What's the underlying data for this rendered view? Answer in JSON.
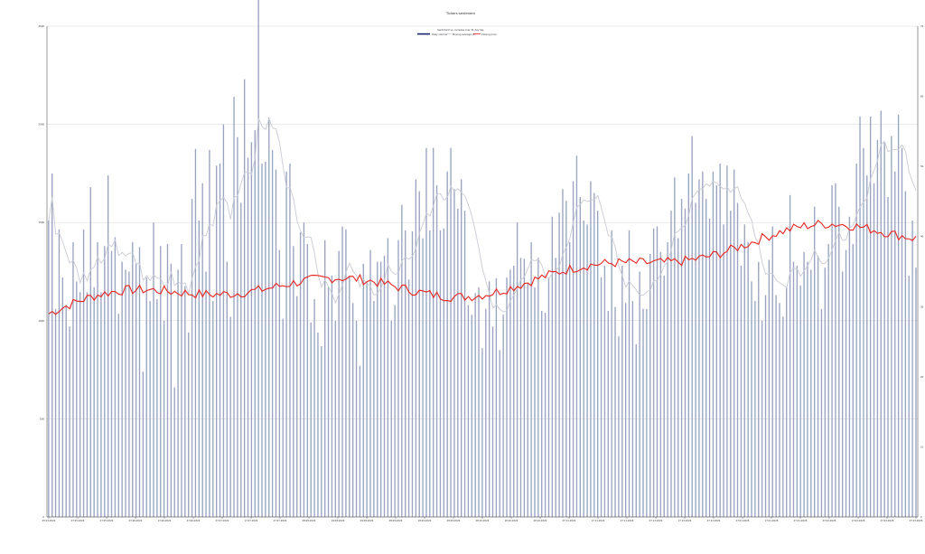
{
  "chart_data": {
    "type": "bar+line",
    "title": "Tickers ",
    "title_suffix": "sentiment",
    "legend_title": "Sentiment vs. increase over 31-day ",
    "legend_title_suffix": "SLL",
    "legend": {
      "volume_label": "Daily volume",
      "ma_label": "Moving Average ",
      "ma_suffix": "(8)",
      "price_label": "Closing ",
      "price_suffix": "price"
    },
    "y_left": {
      "min": 0,
      "max": 2500,
      "ticks": [
        "0",
        "500",
        "1000",
        "1500",
        "2000",
        "2500"
      ]
    },
    "y_right": {
      "min": 0,
      "max": 70,
      "ticks": [
        "0",
        "10",
        "20",
        "30",
        "40",
        "50",
        "60",
        "70"
      ]
    },
    "grid": true,
    "legend_position": "top-center",
    "colors": {
      "bars": "#9aa4bf",
      "ma": "#c8cad6",
      "price": "#e8231d",
      "grid": "#d4d4d4",
      "axis": "#333333"
    },
    "x_tick_labels": [
      "25.04.2024",
      "07.05.2024",
      "27.05.2024",
      "07.06.2024",
      "17.06.2024",
      "27.06.2024",
      "07.07.2024",
      "17.07.2024",
      "27.07.2024",
      "08.08.2024",
      "19.08.2024",
      "29.08.2024",
      "08.09.2024",
      "18.09.2024",
      "28.09.2024",
      "08.10.2024",
      "18.10.2024",
      "28.10.2024",
      "07.11.2024",
      "17.11.2024",
      "27.11.2024",
      "07.12.2024",
      "17.12.2024",
      "27.12.2024",
      "07.01.2025",
      "17.01.2025",
      "27.01.2025",
      "07.02.2025",
      "17.02.2025",
      "27.02.2025",
      "07.03.2025"
    ],
    "volume": [
      1510,
      1750,
      1060,
      1465,
      1220,
      1080,
      970,
      1400,
      1200,
      1145,
      1465,
      1145,
      1680,
      1170,
      1400,
      1145,
      1380,
      1740,
      1355,
      1425,
      1035,
      1300,
      1260,
      1250,
      1400,
      1290,
      1375,
      740,
      1220,
      1100,
      1500,
      1110,
      1380,
      1000,
      1390,
      1290,
      660,
      1260,
      1390,
      1175,
      940,
      1620,
      1875,
      1510,
      1700,
      1250,
      1870,
      1100,
      1790,
      1800,
      2000,
      1300,
      1020,
      2140,
      1935,
      1600,
      2230,
      1830,
      1910,
      1970,
      2640,
      1800,
      1810,
      2035,
      1870,
      1770,
      1360,
      1010,
      1760,
      1800,
      1380,
      1125,
      1450,
      1500,
      1390,
      990,
      1110,
      940,
      870,
      1410,
      1170,
      1230,
      1000,
      1355,
      1480,
      1465,
      1230,
      1090,
      1000,
      770,
      1290,
      1200,
      1360,
      1100,
      1300,
      1300,
      1330,
      1420,
      1000,
      1080,
      1410,
      1590,
      1460,
      1210,
      1455,
      1720,
      1660,
      1420,
      1880,
      1460,
      1880,
      1690,
      1460,
      1470,
      1760,
      1880,
      1670,
      1570,
      1720,
      1560,
      1080,
      1030,
      1140,
      1170,
      860,
      1060,
      1200,
      970,
      1215,
      850,
      1030,
      1220,
      1260,
      1280,
      1500,
      1320,
      1315,
      1190,
      1400,
      1170,
      1320,
      1050,
      1040,
      1220,
      1530,
      1320,
      1550,
      1670,
      1610,
      1400,
      1710,
      1840,
      1630,
      1510,
      1490,
      1710,
      1650,
      1560,
      1220,
      1280,
      1050,
      1460,
      1070,
      920,
      1280,
      1090,
      1460,
      1100,
      880,
      1250,
      1060,
      1060,
      1340,
      1470,
      1480,
      1350,
      1230,
      1400,
      1560,
      1730,
      1420,
      1620,
      1570,
      1750,
      1940,
      1600,
      1720,
      1760,
      1620,
      1520,
      1760,
      1690,
      1800,
      1490,
      1790,
      1560,
      1770,
      1600,
      1280,
      1490,
      1400,
      1200,
      1100,
      1300,
      1000,
      1130,
      1310,
      1480,
      1130,
      1090,
      1020,
      1170,
      1640,
      1300,
      1280,
      1180,
      1350,
      1300,
      1260,
      1580,
      1330,
      1060,
      1270,
      1390,
      1690,
      1700,
      1580,
      1250,
      1360,
      1530,
      1390,
      1800,
      2040,
      1880,
      1740,
      2040,
      1700,
      1920,
      2070,
      1910,
      1630,
      1940,
      1760,
      2050,
      1880,
      1660,
      1230,
      1510,
      1270
    ]
  }
}
